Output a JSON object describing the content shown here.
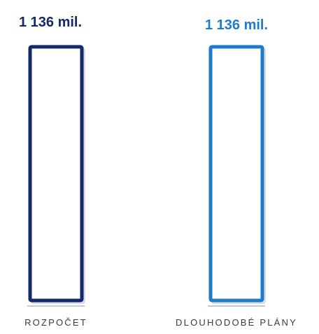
{
  "colors": {
    "series_1": "#13296b",
    "series_2": "#1f7cc8",
    "category_label": "#3a3a3a",
    "baseline": "#c9c9c9"
  },
  "chart_data": {
    "type": "bar",
    "categories": [
      "ROZPOČET",
      "DLOUHODOBÉ PLÁNY"
    ],
    "values": [
      1136,
      1136
    ],
    "value_labels": [
      "1 136 mil.",
      "1 136 mil."
    ],
    "unit": "mil.",
    "title": "",
    "xlabel": "",
    "ylabel": "",
    "ylim": [
      0,
      1136
    ],
    "grid": false,
    "legend": "none",
    "bar_style": "outline"
  }
}
